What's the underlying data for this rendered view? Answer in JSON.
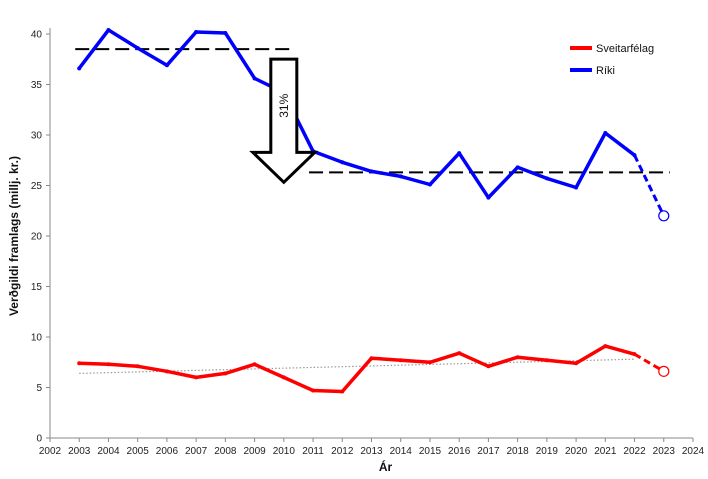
{
  "chart_data": {
    "type": "line",
    "title": "",
    "xlabel": "Ár",
    "ylabel": "Verðgildi framlags (millj. kr.)",
    "xlim": [
      2002,
      2024
    ],
    "ylim": [
      0,
      40
    ],
    "x_ticks": [
      2002,
      2003,
      2004,
      2005,
      2006,
      2007,
      2008,
      2009,
      2010,
      2011,
      2012,
      2013,
      2014,
      2015,
      2016,
      2017,
      2018,
      2019,
      2020,
      2021,
      2022,
      2023,
      2024
    ],
    "y_ticks": [
      0,
      5,
      10,
      15,
      20,
      25,
      30,
      35,
      40
    ],
    "grid": false,
    "legend_position": "top-right",
    "series": [
      {
        "name": "Sveitarfélag",
        "color": "#ff0000",
        "x": [
          2003,
          2004,
          2005,
          2006,
          2007,
          2008,
          2009,
          2010,
          2011,
          2012,
          2013,
          2014,
          2015,
          2016,
          2017,
          2018,
          2019,
          2020,
          2021,
          2022
        ],
        "values": [
          7.4,
          7.3,
          7.1,
          6.6,
          6.0,
          6.4,
          7.3,
          6.0,
          4.7,
          4.6,
          7.9,
          7.7,
          7.5,
          8.4,
          7.1,
          8.0,
          7.7,
          7.4,
          9.1,
          8.3
        ],
        "projection": {
          "x": [
            2022,
            2023
          ],
          "values": [
            8.3,
            6.6
          ]
        },
        "trend": {
          "x": [
            2003,
            2022
          ],
          "values": [
            6.4,
            7.8
          ]
        }
      },
      {
        "name": "Ríki",
        "color": "#0000ff",
        "x": [
          2003,
          2004,
          2005,
          2006,
          2007,
          2008,
          2009,
          2010,
          2011,
          2012,
          2013,
          2014,
          2015,
          2016,
          2017,
          2018,
          2019,
          2020,
          2021,
          2022
        ],
        "values": [
          36.6,
          40.4,
          38.6,
          36.9,
          40.2,
          40.1,
          35.6,
          34.2,
          28.4,
          27.3,
          26.4,
          25.9,
          25.1,
          28.2,
          23.8,
          26.8,
          25.7,
          24.8,
          30.2,
          28.0
        ],
        "projection": {
          "x": [
            2022,
            2023
          ],
          "values": [
            28.0,
            22.0
          ]
        }
      }
    ],
    "reference_lines": [
      {
        "x": [
          2003,
          2010
        ],
        "y": 38.5
      },
      {
        "x": [
          2011,
          2023
        ],
        "y": 26.3
      }
    ],
    "annotations": [
      {
        "text": "31%",
        "type": "down-arrow",
        "x": 2010,
        "y_top": 38.5,
        "y_bottom": 26.5
      }
    ]
  }
}
